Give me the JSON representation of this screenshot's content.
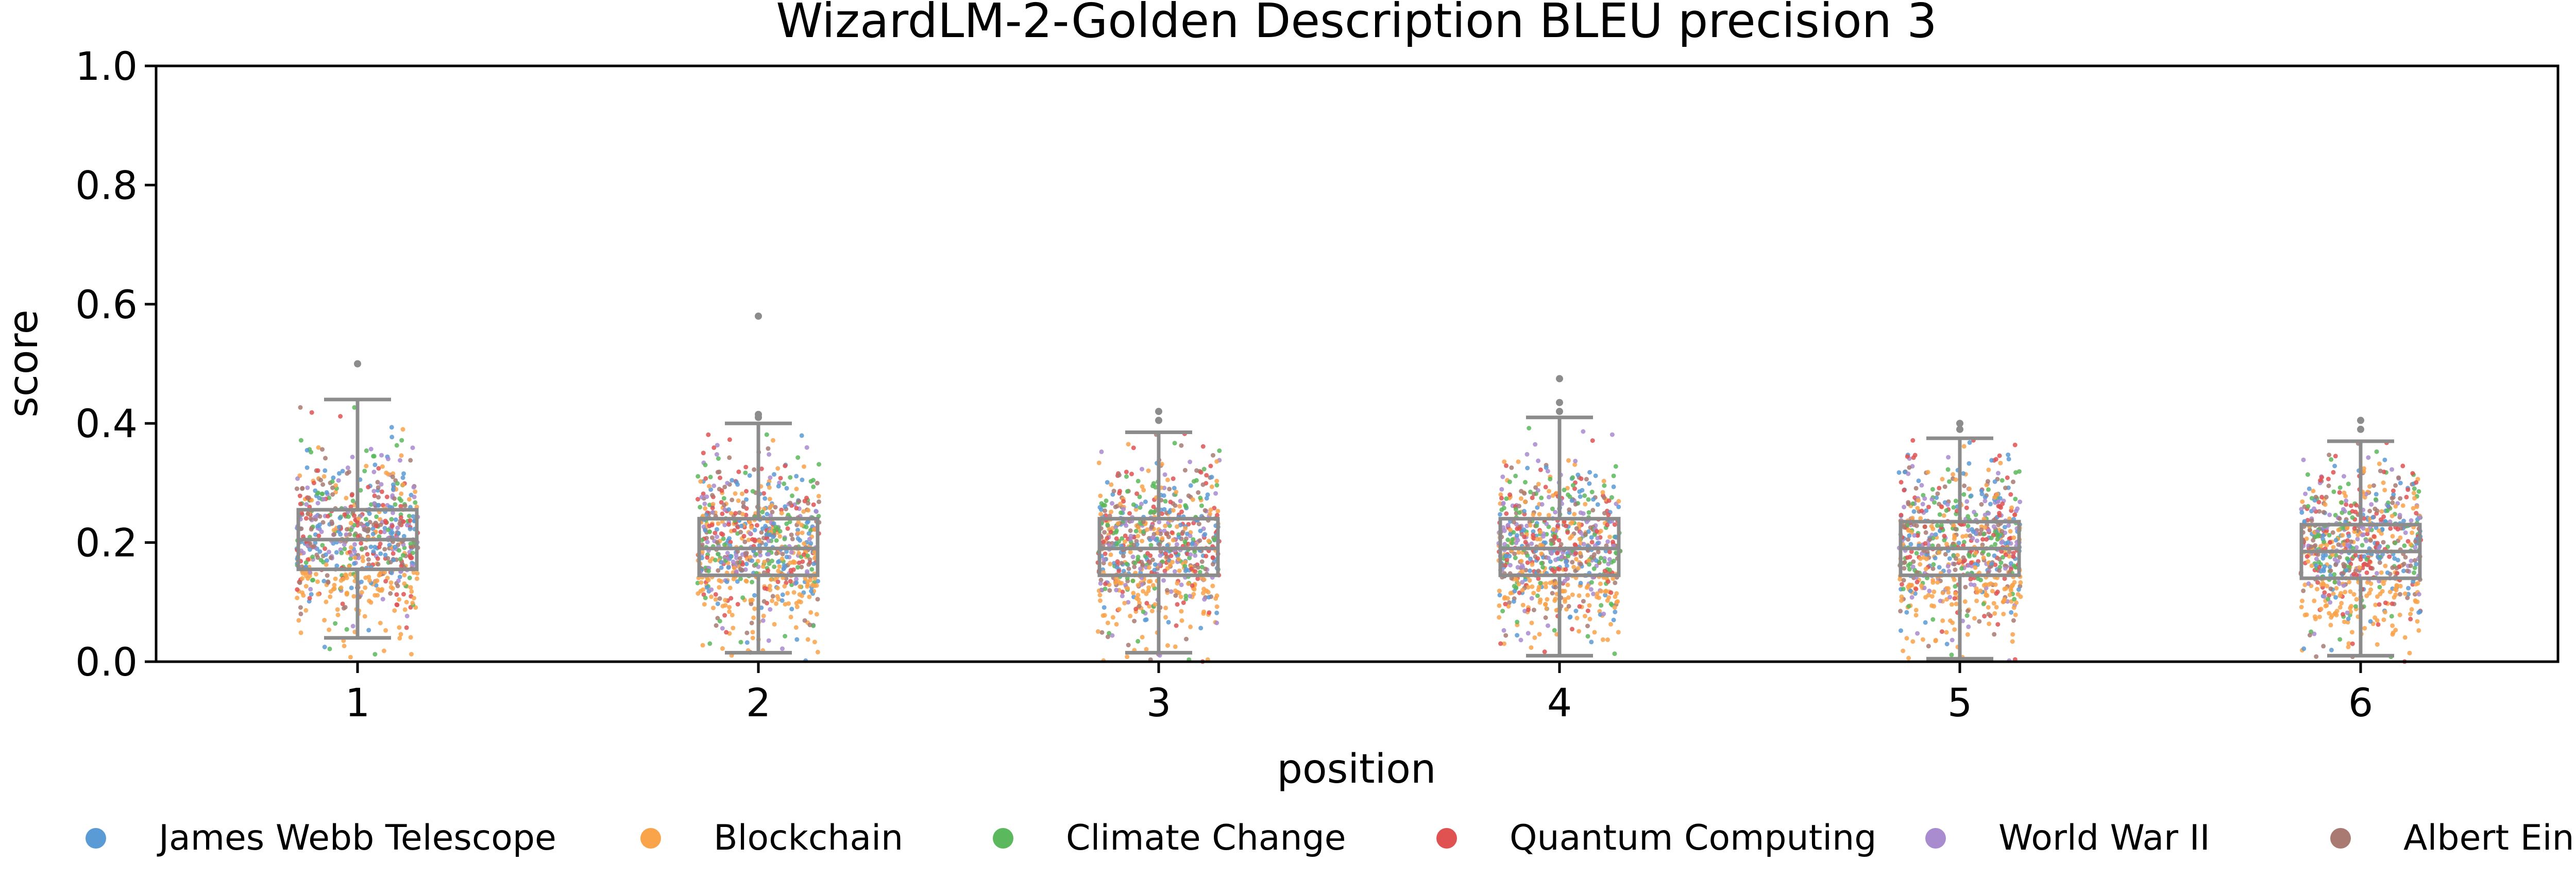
{
  "chart_data": {
    "type": "scatter",
    "subtype": "box-with-jittered-points",
    "title": "WizardLM-2-Golden Description BLEU precision 3",
    "xlabel": "position",
    "ylabel": "score",
    "ylim": [
      0,
      1.0
    ],
    "yticks": [
      "0.0",
      "0.2",
      "0.4",
      "0.6",
      "0.8",
      "1.0"
    ],
    "categories": [
      "1",
      "2",
      "3",
      "4",
      "5",
      "6"
    ],
    "boxes": [
      {
        "position": "1",
        "whisker_low": 0.04,
        "q1": 0.155,
        "median": 0.205,
        "q3": 0.255,
        "whisker_high": 0.44,
        "outliers": [
          0.5
        ]
      },
      {
        "position": "2",
        "whisker_low": 0.015,
        "q1": 0.145,
        "median": 0.19,
        "q3": 0.24,
        "whisker_high": 0.4,
        "outliers": [
          0.41,
          0.415,
          0.58
        ]
      },
      {
        "position": "3",
        "whisker_low": 0.015,
        "q1": 0.145,
        "median": 0.19,
        "q3": 0.24,
        "whisker_high": 0.385,
        "outliers": [
          0.405,
          0.42
        ]
      },
      {
        "position": "4",
        "whisker_low": 0.01,
        "q1": 0.145,
        "median": 0.19,
        "q3": 0.24,
        "whisker_high": 0.41,
        "outliers": [
          0.42,
          0.435,
          0.475
        ]
      },
      {
        "position": "5",
        "whisker_low": 0.005,
        "q1": 0.145,
        "median": 0.19,
        "q3": 0.235,
        "whisker_high": 0.375,
        "outliers": [
          0.39,
          0.4
        ]
      },
      {
        "position": "6",
        "whisker_low": 0.01,
        "q1": 0.14,
        "median": 0.185,
        "q3": 0.23,
        "whisker_high": 0.37,
        "outliers": [
          0.39,
          0.405
        ]
      }
    ],
    "series": [
      {
        "name": "James Webb Telescope",
        "color": "#5b9bd5"
      },
      {
        "name": "Blockchain",
        "color": "#f9a34a"
      },
      {
        "name": "Climate Change",
        "color": "#5cb85c"
      },
      {
        "name": "Quantum Computing",
        "color": "#e05252"
      },
      {
        "name": "World War II",
        "color": "#a98bd0"
      },
      {
        "name": "Albert Einstein",
        "color": "#a87a72"
      }
    ],
    "legend_position": "bottom",
    "grid": false
  }
}
